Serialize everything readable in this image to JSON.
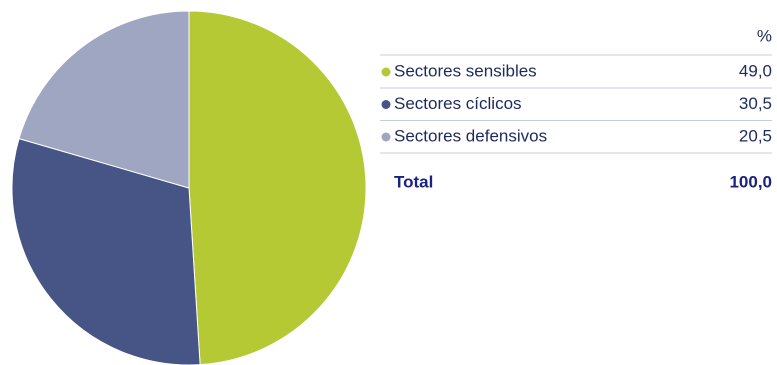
{
  "chart_data": {
    "type": "pie",
    "categories": [
      "Sectores sensibles",
      "Sectores cíclicos",
      "Sectores defensivos"
    ],
    "values": [
      49.0,
      30.5,
      20.5
    ],
    "value_labels": [
      "49,0",
      "30,5",
      "20,5"
    ],
    "colors": [
      "#b5c935",
      "#465486",
      "#9ea6c1"
    ],
    "column_header": "%",
    "total_label": "Total",
    "total_value": 100.0,
    "total_value_label": "100,0"
  }
}
